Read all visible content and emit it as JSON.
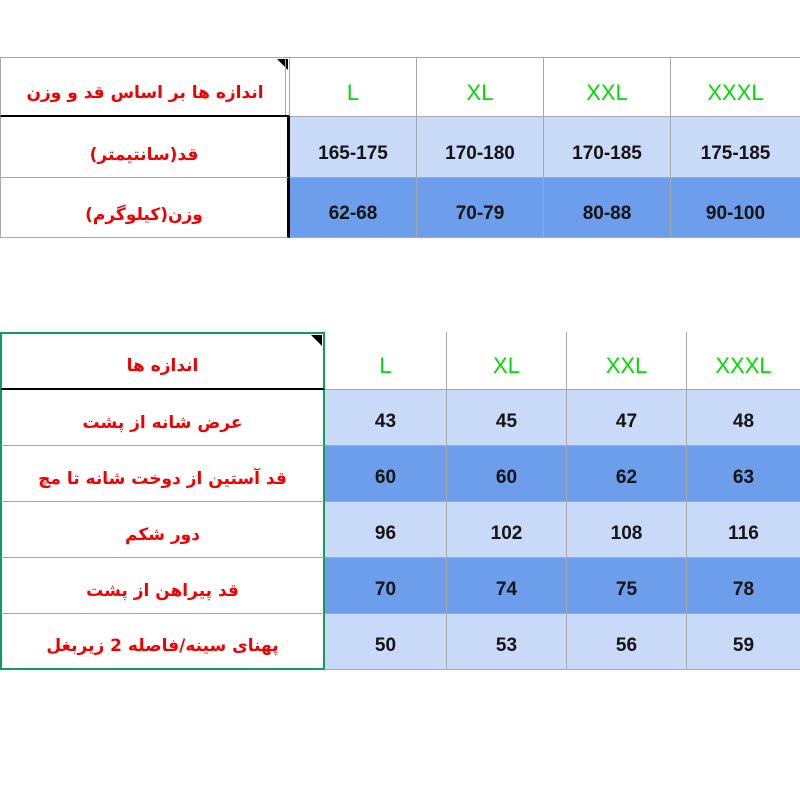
{
  "colors": {
    "light_blue": "#c9daf8",
    "medium_blue": "#6d9eeb",
    "label_red": "#f10000",
    "size_green": "#00dc00",
    "grid_gray": "#a8a8a8",
    "sel_green": "#0f9d58"
  },
  "icons": {
    "corner_triangle": "cell-note-corner-marker"
  },
  "table1": {
    "header_label": "اندازه ها بر اساس قد و وزن",
    "columns": [
      "L",
      "XL",
      "XXL",
      "XXXL"
    ],
    "rows": [
      {
        "label": "قد(سانتیمتر)",
        "values": [
          "165-175",
          "170-180",
          "170-185",
          "175-185"
        ]
      },
      {
        "label": "وزن(کیلوگرم)",
        "values": [
          "62-68",
          "70-79",
          "80-88",
          "90-100"
        ]
      }
    ]
  },
  "table2": {
    "header_label": "اندازه ها",
    "columns": [
      "L",
      "XL",
      "XXL",
      "XXXL"
    ],
    "rows": [
      {
        "label": "عرض شانه از پشت",
        "values": [
          "43",
          "45",
          "47",
          "48"
        ]
      },
      {
        "label": "قد آستین از دوخت شانه تا مچ",
        "values": [
          "60",
          "60",
          "62",
          "63"
        ]
      },
      {
        "label": "دور شکم",
        "values": [
          "96",
          "102",
          "108",
          "116"
        ]
      },
      {
        "label": "قد پیراهن از پشت",
        "values": [
          "70",
          "74",
          "75",
          "78"
        ]
      },
      {
        "label": "پهنای سینه/فاصله 2 زیربغل",
        "values": [
          "50",
          "53",
          "56",
          "59"
        ]
      }
    ]
  }
}
